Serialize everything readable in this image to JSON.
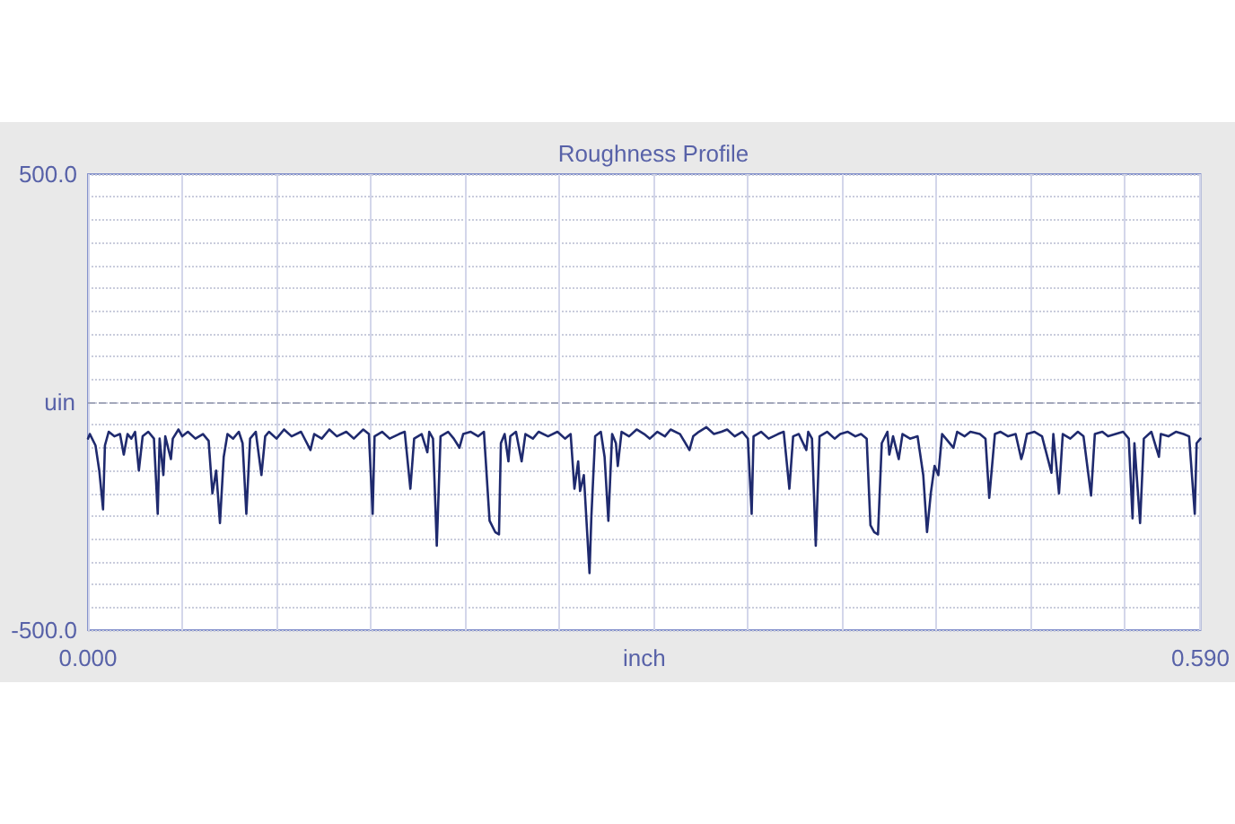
{
  "chart_data": {
    "type": "line",
    "title": "Roughness Profile",
    "xlabel": "inch",
    "ylabel": "uin",
    "color": "#1f2a6e",
    "marker": "none",
    "line_style": "solid",
    "grid": true,
    "xlim": [
      0,
      0.59
    ],
    "xticks": [
      {
        "value": 0,
        "label": "0.000"
      },
      {
        "value": 0.05,
        "label": null
      },
      {
        "value": 0.1,
        "label": null
      },
      {
        "value": 0.15,
        "label": null
      },
      {
        "value": 0.2,
        "label": null
      },
      {
        "value": 0.25,
        "label": null
      },
      {
        "value": 0.3,
        "label": null
      },
      {
        "value": 0.35,
        "label": null
      },
      {
        "value": 0.4,
        "label": null
      },
      {
        "value": 0.45,
        "label": null
      },
      {
        "value": 0.5,
        "label": null
      },
      {
        "value": 0.55,
        "label": null
      },
      {
        "value": 0.59,
        "label": "0.590"
      }
    ],
    "ylim": [
      -500,
      500
    ],
    "yticks": [
      {
        "value": -500,
        "label": "-500.0"
      },
      {
        "value": -450,
        "label": null
      },
      {
        "value": -400,
        "label": null
      },
      {
        "value": -350,
        "label": null
      },
      {
        "value": -300,
        "label": null
      },
      {
        "value": -250,
        "label": null
      },
      {
        "value": -200,
        "label": null
      },
      {
        "value": -150,
        "label": null
      },
      {
        "value": -100,
        "label": null
      },
      {
        "value": -50,
        "label": null
      },
      {
        "value": 0,
        "label": null
      },
      {
        "value": 50,
        "label": null
      },
      {
        "value": 100,
        "label": null
      },
      {
        "value": 150,
        "label": null
      },
      {
        "value": 200,
        "label": null
      },
      {
        "value": 250,
        "label": null
      },
      {
        "value": 300,
        "label": null
      },
      {
        "value": 350,
        "label": null
      },
      {
        "value": 400,
        "label": null
      },
      {
        "value": 450,
        "label": null
      },
      {
        "value": 500,
        "label": "500.0"
      }
    ],
    "ref_lines": [
      {
        "axis": "y",
        "value": 0,
        "line_style": "dashed",
        "color": "#a3a7ba"
      }
    ],
    "x": [
      0.0,
      0.001,
      0.004,
      0.006,
      0.008,
      0.009,
      0.011,
      0.014,
      0.017,
      0.019,
      0.021,
      0.023,
      0.025,
      0.027,
      0.029,
      0.032,
      0.035,
      0.037,
      0.038,
      0.04,
      0.041,
      0.044,
      0.045,
      0.048,
      0.05,
      0.053,
      0.057,
      0.061,
      0.064,
      0.066,
      0.068,
      0.07,
      0.072,
      0.074,
      0.077,
      0.08,
      0.082,
      0.084,
      0.086,
      0.089,
      0.092,
      0.094,
      0.096,
      0.1,
      0.104,
      0.108,
      0.113,
      0.118,
      0.12,
      0.124,
      0.128,
      0.132,
      0.137,
      0.141,
      0.146,
      0.149,
      0.151,
      0.152,
      0.156,
      0.16,
      0.165,
      0.168,
      0.171,
      0.173,
      0.177,
      0.18,
      0.181,
      0.183,
      0.185,
      0.187,
      0.191,
      0.194,
      0.197,
      0.199,
      0.203,
      0.207,
      0.21,
      0.213,
      0.216,
      0.218,
      0.219,
      0.221,
      0.223,
      0.224,
      0.227,
      0.23,
      0.232,
      0.236,
      0.239,
      0.244,
      0.249,
      0.253,
      0.256,
      0.258,
      0.26,
      0.261,
      0.263,
      0.266,
      0.267,
      0.269,
      0.272,
      0.274,
      0.276,
      0.278,
      0.28,
      0.281,
      0.283,
      0.287,
      0.291,
      0.295,
      0.298,
      0.302,
      0.306,
      0.309,
      0.314,
      0.319,
      0.321,
      0.324,
      0.328,
      0.332,
      0.336,
      0.339,
      0.343,
      0.347,
      0.35,
      0.352,
      0.353,
      0.357,
      0.361,
      0.366,
      0.369,
      0.372,
      0.374,
      0.377,
      0.381,
      0.382,
      0.384,
      0.386,
      0.388,
      0.392,
      0.396,
      0.399,
      0.403,
      0.407,
      0.41,
      0.413,
      0.415,
      0.417,
      0.419,
      0.421,
      0.424,
      0.425,
      0.427,
      0.43,
      0.432,
      0.436,
      0.44,
      0.443,
      0.445,
      0.447,
      0.449,
      0.451,
      0.453,
      0.455,
      0.459,
      0.461,
      0.465,
      0.468,
      0.473,
      0.476,
      0.478,
      0.481,
      0.484,
      0.488,
      0.492,
      0.495,
      0.496,
      0.498,
      0.502,
      0.506,
      0.511,
      0.512,
      0.515,
      0.517,
      0.521,
      0.525,
      0.528,
      0.532,
      0.534,
      0.538,
      0.541,
      0.545,
      0.549,
      0.552,
      0.554,
      0.555,
      0.558,
      0.56,
      0.564,
      0.568,
      0.569,
      0.573,
      0.577,
      0.581,
      0.584,
      0.587,
      0.588,
      0.59
    ],
    "values": [
      -80,
      -70,
      -95,
      -150,
      -235,
      -95,
      -65,
      -75,
      -70,
      -115,
      -70,
      -80,
      -65,
      -150,
      -75,
      -65,
      -80,
      -245,
      -80,
      -160,
      -75,
      -125,
      -80,
      -60,
      -75,
      -65,
      -80,
      -70,
      -85,
      -200,
      -150,
      -265,
      -120,
      -70,
      -80,
      -65,
      -90,
      -245,
      -80,
      -65,
      -160,
      -75,
      -65,
      -80,
      -60,
      -75,
      -65,
      -105,
      -70,
      -80,
      -60,
      -75,
      -65,
      -80,
      -60,
      -70,
      -245,
      -75,
      -65,
      -80,
      -70,
      -65,
      -190,
      -80,
      -70,
      -110,
      -65,
      -80,
      -315,
      -75,
      -65,
      -80,
      -100,
      -70,
      -65,
      -75,
      -65,
      -260,
      -285,
      -290,
      -90,
      -70,
      -130,
      -75,
      -65,
      -130,
      -70,
      -80,
      -65,
      -75,
      -65,
      -80,
      -70,
      -190,
      -130,
      -195,
      -160,
      -375,
      -250,
      -75,
      -65,
      -120,
      -260,
      -70,
      -90,
      -140,
      -65,
      -75,
      -60,
      -70,
      -80,
      -65,
      -75,
      -60,
      -70,
      -105,
      -75,
      -65,
      -55,
      -70,
      -65,
      -60,
      -75,
      -65,
      -80,
      -245,
      -75,
      -65,
      -80,
      -70,
      -65,
      -190,
      -75,
      -70,
      -105,
      -65,
      -80,
      -315,
      -75,
      -65,
      -80,
      -70,
      -65,
      -75,
      -70,
      -80,
      -270,
      -285,
      -290,
      -90,
      -65,
      -115,
      -75,
      -125,
      -70,
      -80,
      -75,
      -160,
      -285,
      -200,
      -140,
      -160,
      -70,
      -80,
      -100,
      -65,
      -75,
      -65,
      -70,
      -80,
      -210,
      -70,
      -65,
      -75,
      -70,
      -125,
      -110,
      -70,
      -65,
      -75,
      -155,
      -70,
      -200,
      -70,
      -80,
      -65,
      -75,
      -205,
      -70,
      -65,
      -75,
      -70,
      -65,
      -80,
      -255,
      -90,
      -265,
      -80,
      -65,
      -120,
      -70,
      -75,
      -65,
      -70,
      -75,
      -245,
      -90,
      -80
    ]
  }
}
